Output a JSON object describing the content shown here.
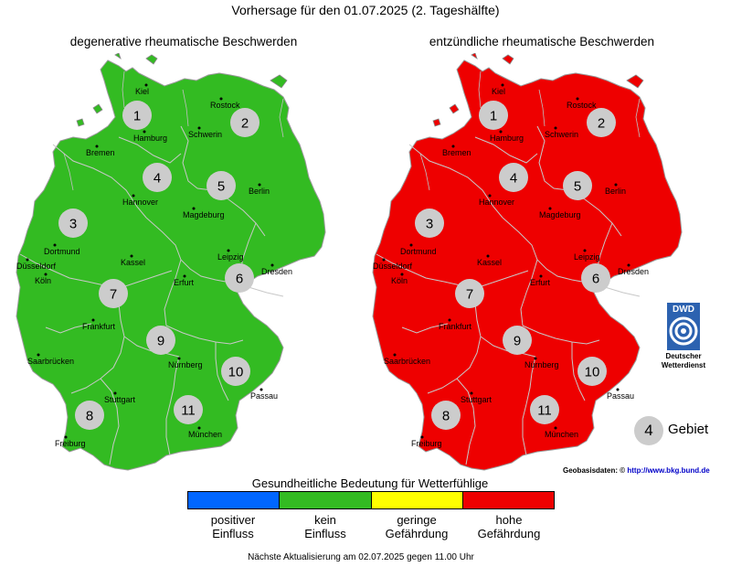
{
  "title": "Vorhersage für den 01.07.2025 (2. Tageshälfte)",
  "maps": [
    {
      "id": "left",
      "title": "degenerative rheumatische Beschwerden",
      "level": "kein Einfluss",
      "fill": "#33bb22"
    },
    {
      "id": "right",
      "title": "entzündliche rheumatische Beschwerden",
      "level": "hohe Gefährdung",
      "fill": "#ee0000"
    }
  ],
  "regions": [
    "1",
    "2",
    "3",
    "4",
    "5",
    "6",
    "7",
    "8",
    "9",
    "10",
    "11"
  ],
  "cities": [
    "Kiel",
    "Rostock",
    "Hamburg",
    "Schwerin",
    "Bremen",
    "Hannover",
    "Berlin",
    "Magdeburg",
    "Dortmund",
    "Düsseldorf",
    "Köln",
    "Kassel",
    "Leipzig",
    "Dresden",
    "Erfurt",
    "Frankfurt",
    "Saarbrücken",
    "Nürnberg",
    "Passau",
    "Stuttgart",
    "München",
    "Freiburg"
  ],
  "legend": {
    "title": "Gesundheitliche Bedeutung für Wetterfühlige",
    "items": [
      {
        "line1": "positiver",
        "line2": "Einfluss",
        "color": "#0066ff"
      },
      {
        "line1": "kein",
        "line2": "Einfluss",
        "color": "#33bb22"
      },
      {
        "line1": "geringe",
        "line2": "Gefährdung",
        "color": "#ffff00"
      },
      {
        "line1": "hohe",
        "line2": "Gefährdung",
        "color": "#ee0000"
      }
    ]
  },
  "region_key": {
    "number": "4",
    "label": "Gebiet"
  },
  "dwd": {
    "line1": "Deutscher",
    "line2": "Wetterdienst",
    "logo_text": "DWD"
  },
  "geobasis": {
    "label": "Geobasisdaten: ©",
    "link": "http://www.bkg.bund.de"
  },
  "footer": "Nächste Aktualisierung am 02.07.2025 gegen 11.00 Uhr"
}
